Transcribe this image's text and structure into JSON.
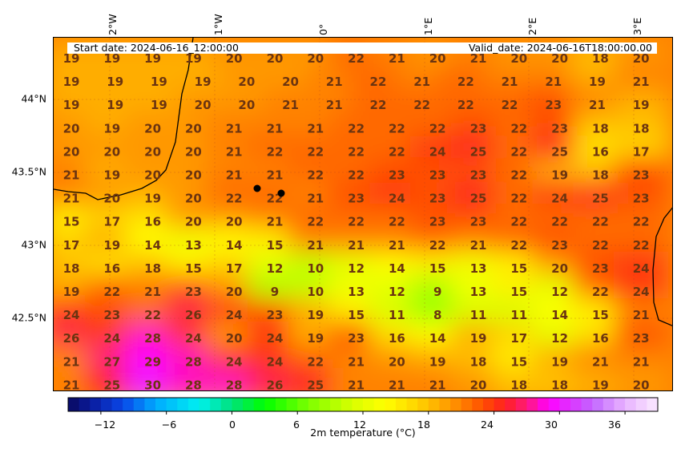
{
  "header": {
    "start_text": "Start date: 2024-06-16_12:00:00",
    "valid_text": "Valid_date: 2024-06-16T18:00:00.00"
  },
  "axes": {
    "lon_labels": [
      "2°W",
      "1°W",
      "0°",
      "1°E",
      "2°E",
      "3°E"
    ],
    "lat_labels": [
      "44°N",
      "43.5°N",
      "43°N",
      "42.5°N"
    ]
  },
  "colorbar": {
    "title": "2m temperature ($^\\circ$C)",
    "title_display": "2m temperature (°C)",
    "range": [
      -15,
      39
    ],
    "ticks": [
      "−12",
      "−6",
      "0",
      "6",
      "12",
      "18",
      "24",
      "30",
      "36"
    ],
    "tick_values": [
      -12,
      -6,
      0,
      6,
      12,
      18,
      24,
      30,
      36
    ]
  },
  "colors": {
    "label_text": "#6b3410",
    "coastline": "#000000",
    "city_marker": "#000000"
  },
  "temperature_grid": [
    [
      19,
      19,
      19,
      19,
      20,
      20,
      20,
      22,
      21,
      20,
      21,
      20,
      20,
      18,
      20
    ],
    [
      19,
      19,
      19,
      19,
      20,
      20,
      21,
      22,
      21,
      22,
      21,
      21,
      19,
      21
    ],
    [
      19,
      19,
      19,
      20,
      20,
      21,
      21,
      22,
      22,
      22,
      22,
      23,
      21,
      19
    ],
    [
      20,
      19,
      20,
      20,
      21,
      21,
      21,
      22,
      22,
      22,
      23,
      22,
      23,
      18,
      18
    ],
    [
      20,
      20,
      20,
      20,
      21,
      22,
      22,
      22,
      22,
      24,
      25,
      22,
      25,
      16,
      17
    ],
    [
      21,
      19,
      20,
      20,
      21,
      21,
      22,
      22,
      23,
      23,
      23,
      22,
      19,
      18,
      23
    ],
    [
      21,
      20,
      19,
      20,
      22,
      22,
      21,
      23,
      24,
      23,
      25,
      22,
      24,
      25,
      23
    ],
    [
      15,
      17,
      16,
      20,
      20,
      21,
      22,
      22,
      22,
      23,
      23,
      22,
      22,
      22,
      22
    ],
    [
      17,
      19,
      14,
      13,
      14,
      15,
      21,
      21,
      21,
      22,
      21,
      22,
      23,
      22,
      22
    ],
    [
      18,
      16,
      18,
      15,
      17,
      12,
      10,
      12,
      14,
      15,
      13,
      15,
      20,
      23,
      24
    ],
    [
      19,
      22,
      21,
      23,
      20,
      9,
      10,
      13,
      12,
      9,
      13,
      15,
      12,
      22,
      24
    ],
    [
      24,
      23,
      22,
      26,
      24,
      23,
      19,
      15,
      11,
      8,
      11,
      11,
      14,
      15,
      21
    ],
    [
      26,
      24,
      28,
      24,
      20,
      24,
      19,
      23,
      16,
      14,
      19,
      17,
      12,
      16,
      23
    ],
    [
      21,
      27,
      29,
      28,
      24,
      24,
      22,
      21,
      20,
      19,
      18,
      15,
      19,
      21,
      21
    ],
    [
      21,
      25,
      30,
      28,
      28,
      26,
      25,
      21,
      21,
      21,
      20,
      18,
      18,
      19,
      20
    ]
  ]
}
